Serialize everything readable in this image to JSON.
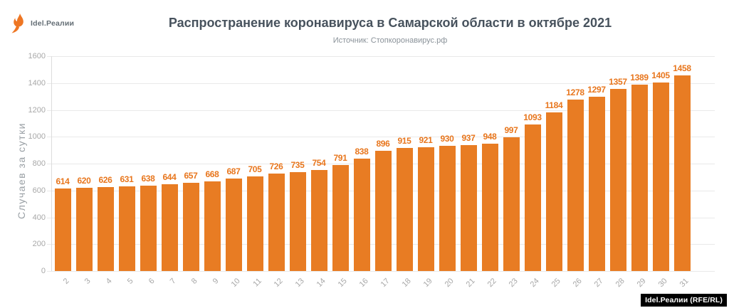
{
  "logo": {
    "text": "Idel.Реалии"
  },
  "header": {
    "title": "Распространение коронавируса в Самарской области в октябре 2021",
    "subtitle": "Источник: Стопкоронавирус.рф"
  },
  "badge": {
    "text": "Idel.Реалии (RFE/RL)"
  },
  "chart_data": {
    "type": "bar",
    "categories": [
      "2",
      "3",
      "4",
      "5",
      "6",
      "7",
      "8",
      "9",
      "10",
      "11",
      "12",
      "13",
      "14",
      "15",
      "16",
      "17",
      "18",
      "19",
      "20",
      "21",
      "22",
      "23",
      "24",
      "25",
      "26",
      "27",
      "28",
      "29",
      "30",
      "31"
    ],
    "values": [
      614,
      620,
      626,
      631,
      638,
      644,
      657,
      668,
      687,
      705,
      726,
      735,
      754,
      791,
      838,
      896,
      915,
      921,
      930,
      937,
      948,
      997,
      1093,
      1184,
      1278,
      1297,
      1357,
      1389,
      1405,
      1458
    ],
    "title": "Распространение коронавируса в Самарской области в октябре 2021",
    "subtitle": "Источник: Стопкоронавирус.рф",
    "xlabel": "",
    "ylabel": "Случаев за сутки",
    "ylim": [
      0,
      1600
    ],
    "ytick_interval": 200,
    "bar_color": "#e87c23",
    "grid": true,
    "legend": false
  }
}
